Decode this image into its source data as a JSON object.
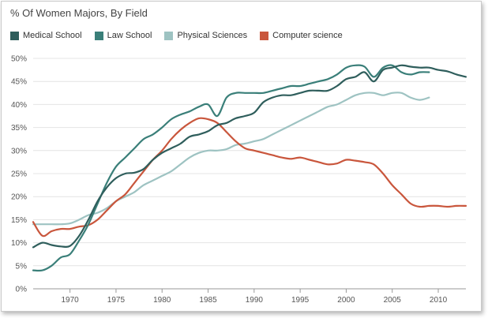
{
  "chart_data": {
    "type": "line",
    "title": "% Of Women Majors, By Field",
    "xlabel": "",
    "ylabel": "",
    "xlim": [
      1966,
      2013
    ],
    "ylim": [
      0,
      50
    ],
    "y_ticks": [
      0,
      5,
      10,
      15,
      20,
      25,
      30,
      35,
      40,
      45,
      50
    ],
    "y_tick_labels": [
      "0%",
      "5%",
      "10%",
      "15%",
      "20%",
      "25%",
      "30%",
      "35%",
      "40%",
      "45%",
      "50%"
    ],
    "x_ticks": [
      1970,
      1975,
      1980,
      1985,
      1990,
      1995,
      2000,
      2005,
      2010
    ],
    "x_tick_labels": [
      "1970",
      "1975",
      "1980",
      "1985",
      "1990",
      "1995",
      "2000",
      "2005",
      "2010"
    ],
    "grid": "horizontal",
    "legend_position": "top-left",
    "series": [
      {
        "name": "Medical School",
        "color": "#2f5e5c",
        "x": [
          1966,
          1967,
          1968,
          1969,
          1970,
          1971,
          1972,
          1973,
          1974,
          1975,
          1976,
          1977,
          1978,
          1979,
          1980,
          1981,
          1982,
          1983,
          1984,
          1985,
          1986,
          1987,
          1988,
          1989,
          1990,
          1991,
          1992,
          1993,
          1994,
          1995,
          1996,
          1997,
          1998,
          1999,
          2000,
          2001,
          2002,
          2003,
          2004,
          2005,
          2006,
          2007,
          2008,
          2009,
          2010,
          2011,
          2012,
          2013
        ],
        "values": [
          9,
          10,
          9.5,
          9.2,
          9.3,
          11.5,
          15,
          19,
          22,
          24,
          25,
          25.2,
          26,
          28,
          29.5,
          30.5,
          31.5,
          33,
          33.5,
          34.2,
          35.5,
          36,
          37,
          37.5,
          38.2,
          40.5,
          41.5,
          42,
          42,
          42.5,
          43,
          43,
          43,
          44,
          45.5,
          46,
          47,
          45,
          47.5,
          48,
          48.5,
          48.2,
          48,
          48,
          47.5,
          47.2,
          46.5,
          46
        ]
      },
      {
        "name": "Law School",
        "color": "#3a7f79",
        "x": [
          1966,
          1967,
          1968,
          1969,
          1970,
          1971,
          1972,
          1973,
          1974,
          1975,
          1976,
          1977,
          1978,
          1979,
          1980,
          1981,
          1982,
          1983,
          1984,
          1985,
          1986,
          1987,
          1988,
          1989,
          1990,
          1991,
          1992,
          1993,
          1994,
          1995,
          1996,
          1997,
          1998,
          1999,
          2000,
          2001,
          2002,
          2003,
          2004,
          2005,
          2006,
          2007,
          2008,
          2009
        ],
        "values": [
          4,
          4,
          5,
          6.8,
          7.5,
          10.5,
          14,
          18.5,
          23,
          26.5,
          28.5,
          30.5,
          32.5,
          33.5,
          35,
          36.8,
          37.8,
          38.5,
          39.5,
          40,
          37.5,
          41.5,
          42.5,
          42.5,
          42.5,
          42.5,
          43,
          43.5,
          44,
          44,
          44.5,
          45,
          45.5,
          46.5,
          48,
          48.5,
          48.2,
          46,
          48,
          48.5,
          47,
          46.5,
          47,
          47
        ]
      },
      {
        "name": "Physical Sciences",
        "color": "#9ec3c2",
        "x": [
          1966,
          1967,
          1968,
          1969,
          1970,
          1971,
          1972,
          1973,
          1974,
          1975,
          1976,
          1977,
          1978,
          1979,
          1980,
          1981,
          1982,
          1983,
          1984,
          1985,
          1986,
          1987,
          1988,
          1989,
          1990,
          1991,
          1992,
          1993,
          1994,
          1995,
          1996,
          1997,
          1998,
          1999,
          2000,
          2001,
          2002,
          2003,
          2004,
          2005,
          2006,
          2007,
          2008,
          2009
        ],
        "values": [
          14,
          14,
          14,
          14,
          14.2,
          15,
          16,
          16.5,
          17.5,
          19,
          20,
          21,
          22.5,
          23.5,
          24.5,
          25.5,
          27,
          28.5,
          29.5,
          30,
          30,
          30.3,
          31.2,
          31.5,
          32,
          32.5,
          33.5,
          34.5,
          35.5,
          36.5,
          37.5,
          38.5,
          39.5,
          40,
          41,
          42,
          42.5,
          42.5,
          42,
          42.5,
          42.5,
          41.5,
          41,
          41.5
        ]
      },
      {
        "name": "Computer science",
        "color": "#c9563c",
        "x": [
          1966,
          1967,
          1968,
          1969,
          1970,
          1971,
          1972,
          1973,
          1974,
          1975,
          1976,
          1977,
          1978,
          1979,
          1980,
          1981,
          1982,
          1983,
          1984,
          1985,
          1986,
          1987,
          1988,
          1989,
          1990,
          1991,
          1992,
          1993,
          1994,
          1995,
          1996,
          1997,
          1998,
          1999,
          2000,
          2001,
          2002,
          2003,
          2004,
          2005,
          2006,
          2007,
          2008,
          2009,
          2010,
          2011,
          2012,
          2013
        ],
        "values": [
          14.5,
          11.5,
          12.5,
          13,
          13,
          13.5,
          13.8,
          15,
          17,
          19,
          20.5,
          23,
          25.5,
          28,
          30,
          32.5,
          34.5,
          36,
          37,
          36.8,
          36,
          34,
          32,
          30.5,
          30,
          29.5,
          29,
          28.5,
          28.2,
          28.5,
          28,
          27.5,
          27,
          27.2,
          28,
          27.8,
          27.5,
          27,
          25,
          22.5,
          20.5,
          18.5,
          17.8,
          18,
          18,
          17.8,
          18,
          18
        ]
      }
    ]
  }
}
